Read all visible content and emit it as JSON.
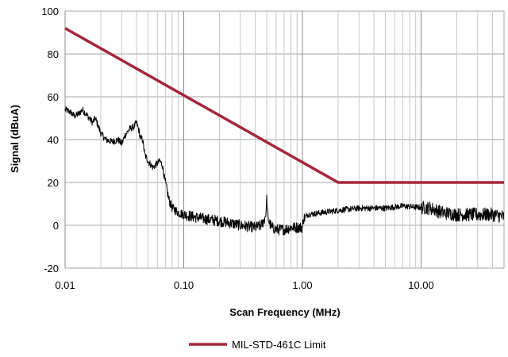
{
  "chart_data": {
    "type": "line",
    "title": "",
    "xlabel": "Scan Frequency (MHz)",
    "ylabel": "Signal (dBuA)",
    "x_scale": "log",
    "xlim": [
      0.01,
      50
    ],
    "ylim": [
      -20,
      100
    ],
    "x_ticks": [
      0.01,
      0.1,
      1,
      10
    ],
    "x_tick_labels": [
      "0.01",
      "0.10",
      "1.00",
      "10.00"
    ],
    "y_ticks": [
      -20,
      0,
      20,
      40,
      60,
      80,
      100
    ],
    "y_tick_labels": [
      "-20",
      "0",
      "20",
      "40",
      "60",
      "80",
      "100"
    ],
    "grid": {
      "vertical_major": true,
      "vertical_minor": true,
      "horizontal": true
    },
    "legend": {
      "position": "bottom-center",
      "entries": [
        "MIL-STD-461C Limit"
      ]
    },
    "series": [
      {
        "name": "MIL-STD-461C Limit",
        "color": "#a5273b",
        "line_width": "thick",
        "x": [
          0.01,
          2,
          50
        ],
        "y": [
          92,
          20,
          20
        ]
      },
      {
        "name": "",
        "color": "#000000",
        "line_width": "thin",
        "noisy": true,
        "x": [
          0.01,
          0.011,
          0.012,
          0.013,
          0.014,
          0.015,
          0.016,
          0.017,
          0.018,
          0.02,
          0.022,
          0.025,
          0.028,
          0.03,
          0.032,
          0.035,
          0.038,
          0.04,
          0.042,
          0.043,
          0.045,
          0.047,
          0.05,
          0.055,
          0.06,
          0.063,
          0.066,
          0.07,
          0.075,
          0.08,
          0.09,
          0.1,
          0.12,
          0.15,
          0.2,
          0.25,
          0.3,
          0.4,
          0.45,
          0.48,
          0.5,
          0.52,
          0.55,
          0.6,
          0.7,
          0.8,
          0.9,
          1.0,
          1.02,
          1.1,
          1.5,
          2,
          3,
          5,
          7,
          9,
          12,
          15,
          20,
          30,
          40,
          50
        ],
        "y": [
          54,
          53,
          51,
          52,
          54,
          52,
          50,
          48,
          50,
          43,
          40,
          39,
          40,
          38,
          42,
          45,
          46,
          48,
          44,
          41,
          40,
          33,
          30,
          27,
          29,
          30,
          28,
          20,
          12,
          8,
          6,
          5,
          4,
          3,
          2,
          1,
          0,
          -1,
          0,
          3,
          8,
          2,
          -1,
          -2,
          -2,
          -1,
          -1,
          -1,
          3,
          5,
          6,
          7,
          8,
          8,
          9,
          8.5,
          8,
          6,
          5,
          5,
          5,
          4
        ]
      }
    ]
  }
}
